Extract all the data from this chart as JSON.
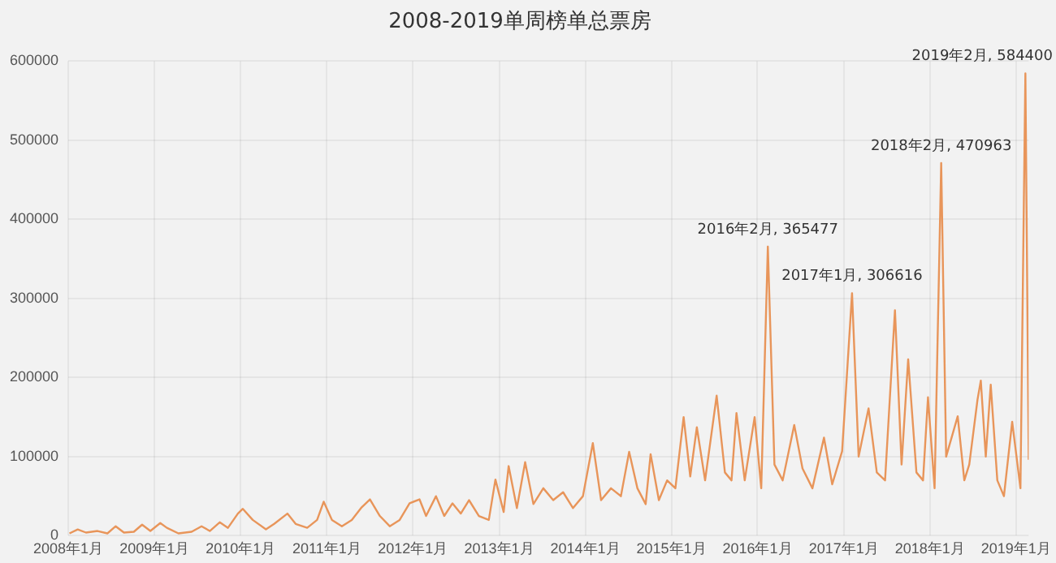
{
  "chart_data": {
    "type": "line",
    "title": "2008-2019单周榜单总票房",
    "x": [
      "2008-01-06",
      "2008-02-10",
      "2008-03-16",
      "2008-05-04",
      "2008-06-15",
      "2008-07-20",
      "2008-08-24",
      "2008-10-05",
      "2008-11-09",
      "2008-12-14",
      "2009-01-25",
      "2009-02-22",
      "2009-04-12",
      "2009-06-07",
      "2009-07-19",
      "2009-08-23",
      "2009-10-04",
      "2009-11-08",
      "2009-12-20",
      "2010-01-10",
      "2010-02-21",
      "2010-04-18",
      "2010-05-23",
      "2010-07-18",
      "2010-08-22",
      "2010-10-10",
      "2010-11-21",
      "2010-12-19",
      "2011-01-23",
      "2011-03-06",
      "2011-04-17",
      "2011-05-29",
      "2011-07-03",
      "2011-08-14",
      "2011-09-25",
      "2011-11-06",
      "2011-12-18",
      "2012-01-29",
      "2012-02-26",
      "2012-04-08",
      "2012-05-13",
      "2012-06-17",
      "2012-07-22",
      "2012-08-26",
      "2012-10-07",
      "2012-11-18",
      "2012-12-16",
      "2013-01-20",
      "2013-02-10",
      "2013-03-17",
      "2013-04-21",
      "2013-05-26",
      "2013-07-07",
      "2013-08-18",
      "2013-09-29",
      "2013-11-10",
      "2013-12-22",
      "2014-02-02",
      "2014-03-09",
      "2014-04-20",
      "2014-06-01",
      "2014-07-06",
      "2014-08-10",
      "2014-09-14",
      "2014-10-05",
      "2014-11-09",
      "2014-12-14",
      "2015-01-18",
      "2015-02-22",
      "2015-03-22",
      "2015-04-19",
      "2015-05-24",
      "2015-07-12",
      "2015-08-16",
      "2015-09-13",
      "2015-10-04",
      "2015-11-08",
      "2015-12-20",
      "2016-01-17",
      "2016-02-14",
      "2016-03-13",
      "2016-04-17",
      "2016-06-05",
      "2016-07-10",
      "2016-08-21",
      "2016-10-09",
      "2016-11-13",
      "2016-12-25",
      "2017-02-05",
      "2017-03-05",
      "2017-04-16",
      "2017-05-21",
      "2017-06-25",
      "2017-08-06",
      "2017-09-03",
      "2017-10-01",
      "2017-11-05",
      "2017-12-03",
      "2017-12-24",
      "2018-01-21",
      "2018-02-18",
      "2018-03-11",
      "2018-04-29",
      "2018-05-27",
      "2018-06-17",
      "2018-07-22",
      "2018-08-05",
      "2018-08-26",
      "2018-09-16",
      "2018-10-14",
      "2018-11-11",
      "2018-12-16",
      "2019-01-20",
      "2019-02-10",
      "2019-02-24"
    ],
    "series": [
      {
        "color": "#e8955a",
        "values": [
          3000,
          8000,
          4000,
          6000,
          3000,
          12000,
          4000,
          5000,
          14000,
          6000,
          16000,
          10000,
          3000,
          5000,
          12000,
          6000,
          17000,
          10000,
          28000,
          34000,
          20000,
          8000,
          15000,
          28000,
          15000,
          10000,
          20000,
          43000,
          20000,
          12000,
          20000,
          36000,
          46000,
          25000,
          12000,
          20000,
          41000,
          46000,
          25000,
          50000,
          25000,
          41000,
          28000,
          45000,
          25000,
          20000,
          71000,
          30000,
          88000,
          35000,
          93000,
          40000,
          60000,
          45000,
          55000,
          35000,
          50000,
          117000,
          45000,
          60000,
          50000,
          106000,
          60000,
          40000,
          103000,
          45000,
          70000,
          60000,
          150000,
          75000,
          137000,
          70000,
          177000,
          80000,
          70000,
          155000,
          70000,
          150000,
          60000,
          365477,
          90000,
          70000,
          140000,
          85000,
          60000,
          124000,
          65000,
          107000,
          306616,
          100000,
          161000,
          80000,
          70000,
          285000,
          90000,
          223000,
          80000,
          70000,
          175000,
          60000,
          470963,
          100000,
          151000,
          70000,
          90000,
          172000,
          196000,
          100000,
          191000,
          70000,
          50000,
          144000,
          60000,
          584400,
          96000
        ]
      }
    ],
    "xlim": [
      "2008-01-01",
      "2019-02-24"
    ],
    "xticks": [
      {
        "value": "2008-01-01",
        "label": "2008年1月"
      },
      {
        "value": "2009-01-01",
        "label": "2009年1月"
      },
      {
        "value": "2010-01-01",
        "label": "2010年1月"
      },
      {
        "value": "2011-01-01",
        "label": "2011年1月"
      },
      {
        "value": "2012-01-01",
        "label": "2012年1月"
      },
      {
        "value": "2013-01-01",
        "label": "2013年1月"
      },
      {
        "value": "2014-01-01",
        "label": "2014年1月"
      },
      {
        "value": "2015-01-01",
        "label": "2015年1月"
      },
      {
        "value": "2016-01-01",
        "label": "2016年1月"
      },
      {
        "value": "2017-01-01",
        "label": "2017年1月"
      },
      {
        "value": "2018-01-01",
        "label": "2018年1月"
      },
      {
        "value": "2019-01-01",
        "label": "2019年1月"
      }
    ],
    "ylim": [
      0,
      600000
    ],
    "yticks": [
      0,
      100000,
      200000,
      300000,
      400000,
      500000,
      600000
    ],
    "grid": true,
    "legend": false,
    "marker": "none",
    "line_style": "solid",
    "annotations": [
      {
        "text": "2016年2月, 365477",
        "x": "2016-02-14",
        "y": 365477
      },
      {
        "text": "2017年1月, 306616",
        "x": "2017-02-05",
        "y": 306616
      },
      {
        "text": "2018年2月, 470963",
        "x": "2018-02-18",
        "y": 470963
      },
      {
        "text": "2019年2月, 584400",
        "x": "2019-02-10",
        "y": 584400
      }
    ]
  }
}
